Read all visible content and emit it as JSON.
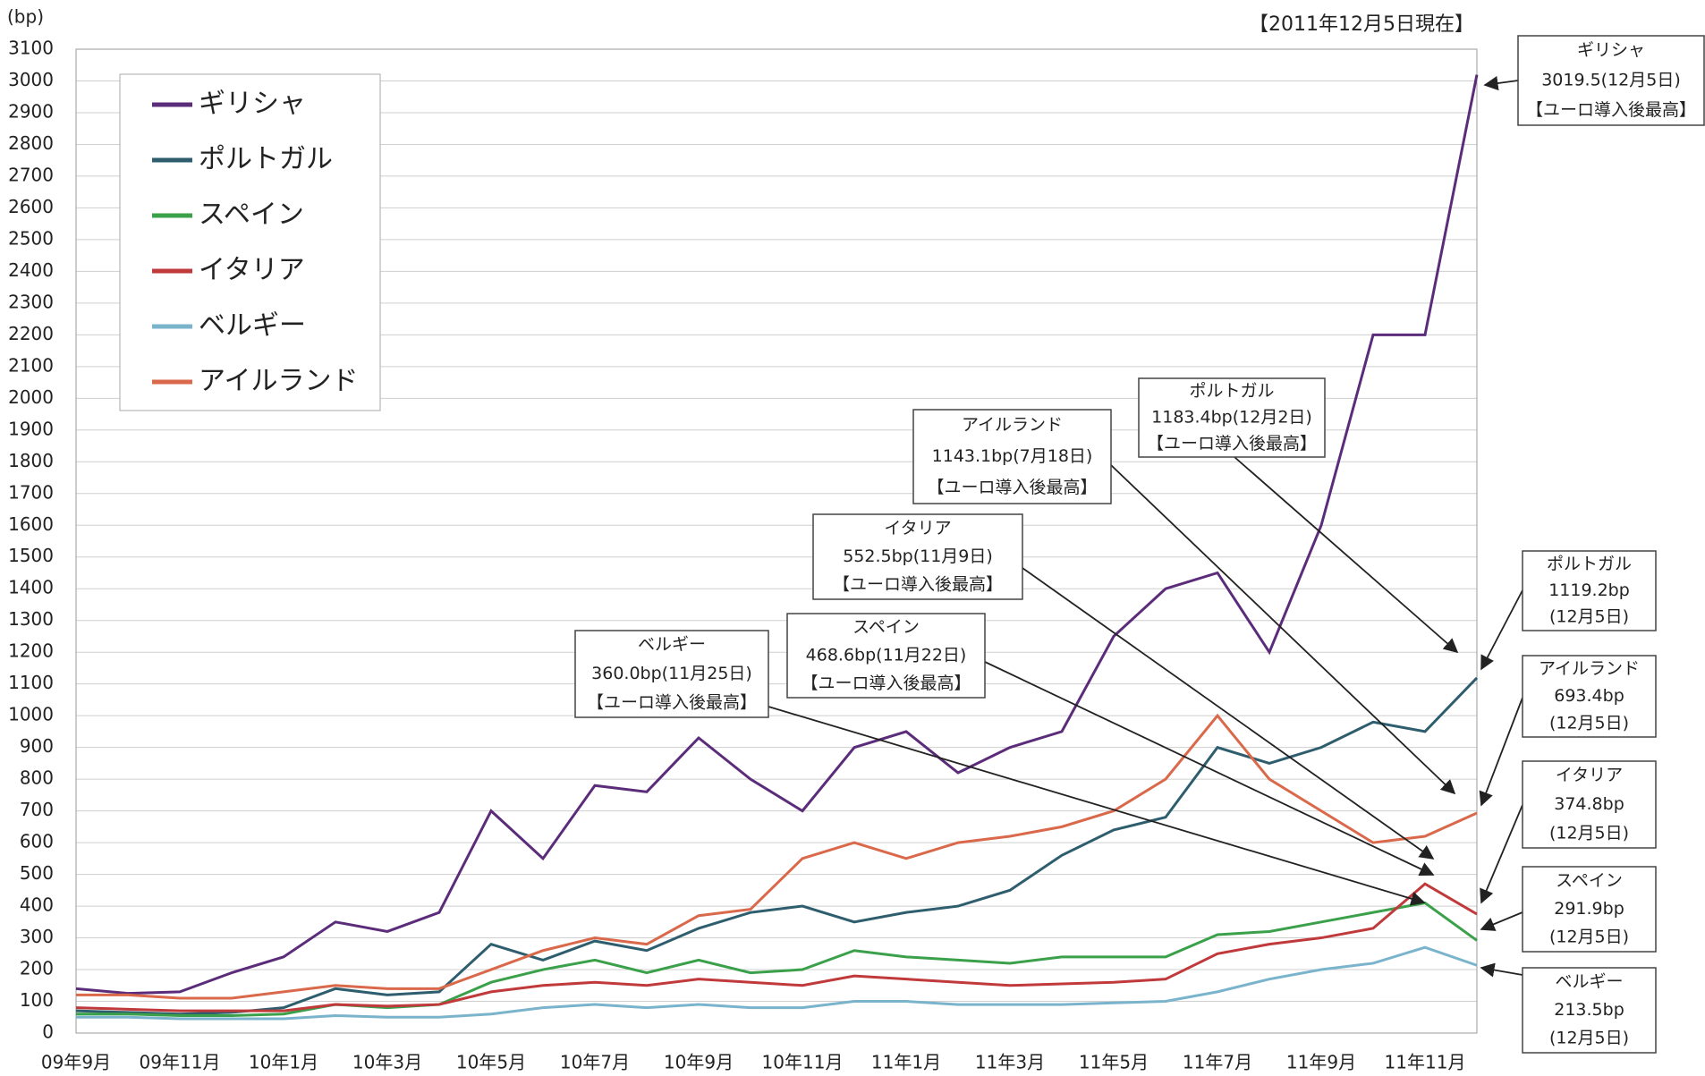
{
  "chart_data": {
    "type": "line",
    "unit_label": "(bp)",
    "as_of": "【2011年12月5日現在】",
    "categories": [
      "09年9月",
      null,
      "09年11月",
      null,
      "10年1月",
      null,
      "10年3月",
      null,
      "10年5月",
      null,
      "10年7月",
      null,
      "10年9月",
      null,
      "10年11月",
      null,
      "11年1月",
      null,
      "11年3月",
      null,
      "11年5月",
      null,
      "11年7月",
      null,
      "11年9月",
      null,
      "11年11月",
      null
    ],
    "ylim": [
      0,
      3100
    ],
    "yticks": [
      0,
      100,
      200,
      300,
      400,
      500,
      600,
      700,
      800,
      900,
      1000,
      1100,
      1200,
      1300,
      1400,
      1500,
      1600,
      1700,
      1800,
      1900,
      2000,
      2100,
      2200,
      2300,
      2400,
      2500,
      2600,
      2700,
      2800,
      2900,
      3000,
      3100
    ],
    "grid": true,
    "series": [
      {
        "name": "ギリシャ",
        "color": "#5b2c7a",
        "values": [
          140,
          125,
          130,
          190,
          240,
          350,
          320,
          380,
          700,
          550,
          780,
          760,
          930,
          800,
          700,
          900,
          950,
          820,
          900,
          950,
          1250,
          1400,
          1450,
          1200,
          1600,
          2200,
          2200,
          3019.5
        ]
      },
      {
        "name": "ポルトガル",
        "color": "#2e5e6e",
        "values": [
          70,
          65,
          60,
          65,
          80,
          140,
          120,
          130,
          280,
          230,
          290,
          260,
          330,
          380,
          400,
          350,
          380,
          400,
          450,
          560,
          640,
          680,
          900,
          850,
          900,
          980,
          950,
          1119.2
        ]
      },
      {
        "name": "スペイン",
        "color": "#3aa04a",
        "values": [
          60,
          60,
          55,
          55,
          60,
          90,
          80,
          90,
          160,
          200,
          230,
          190,
          230,
          190,
          200,
          260,
          240,
          230,
          220,
          240,
          240,
          240,
          310,
          320,
          350,
          380,
          410,
          291.9
        ]
      },
      {
        "name": "イタリア",
        "color": "#c0393b",
        "values": [
          80,
          75,
          70,
          70,
          70,
          90,
          85,
          90,
          130,
          150,
          160,
          150,
          170,
          160,
          150,
          180,
          170,
          160,
          150,
          155,
          160,
          170,
          250,
          280,
          300,
          330,
          470,
          374.8
        ]
      },
      {
        "name": "ベルギー",
        "color": "#7ab3cc",
        "values": [
          50,
          50,
          45,
          45,
          45,
          55,
          50,
          50,
          60,
          80,
          90,
          80,
          90,
          80,
          80,
          100,
          100,
          90,
          90,
          90,
          95,
          100,
          130,
          170,
          200,
          220,
          270,
          213.5
        ]
      },
      {
        "name": "アイルランド",
        "color": "#d9694a",
        "values": [
          120,
          120,
          110,
          110,
          130,
          150,
          140,
          140,
          200,
          260,
          300,
          280,
          370,
          390,
          550,
          600,
          550,
          600,
          620,
          650,
          700,
          800,
          1000,
          800,
          700,
          600,
          620,
          693.4
        ]
      }
    ],
    "annotations": [
      {
        "lines": [
          "ギリシャ",
          "3019.5(12月5日)",
          "【ユーロ導入後最高】"
        ]
      },
      {
        "lines": [
          "ポルトガル",
          "1183.4bp(12月2日)",
          "【ユーロ導入後最高】"
        ]
      },
      {
        "lines": [
          "アイルランド",
          "1143.1bp(7月18日)",
          "【ユーロ導入後最高】"
        ]
      },
      {
        "lines": [
          "イタリア",
          "552.5bp(11月9日)",
          "【ユーロ導入後最高】"
        ]
      },
      {
        "lines": [
          "スペイン",
          "468.6bp(11月22日)",
          "【ユーロ導入後最高】"
        ]
      },
      {
        "lines": [
          "ベルギー",
          "360.0bp(11月25日)",
          "【ユーロ導入後最高】"
        ]
      },
      {
        "lines": [
          "ポルトガル",
          "1119.2bp",
          "(12月5日)"
        ]
      },
      {
        "lines": [
          "アイルランド",
          "693.4bp",
          "(12月5日)"
        ]
      },
      {
        "lines": [
          "イタリア",
          "374.8bp",
          "(12月5日)"
        ]
      },
      {
        "lines": [
          "スペイン",
          "291.9bp",
          "(12月5日)"
        ]
      },
      {
        "lines": [
          "ベルギー",
          "213.5bp",
          "(12月5日)"
        ]
      }
    ]
  }
}
